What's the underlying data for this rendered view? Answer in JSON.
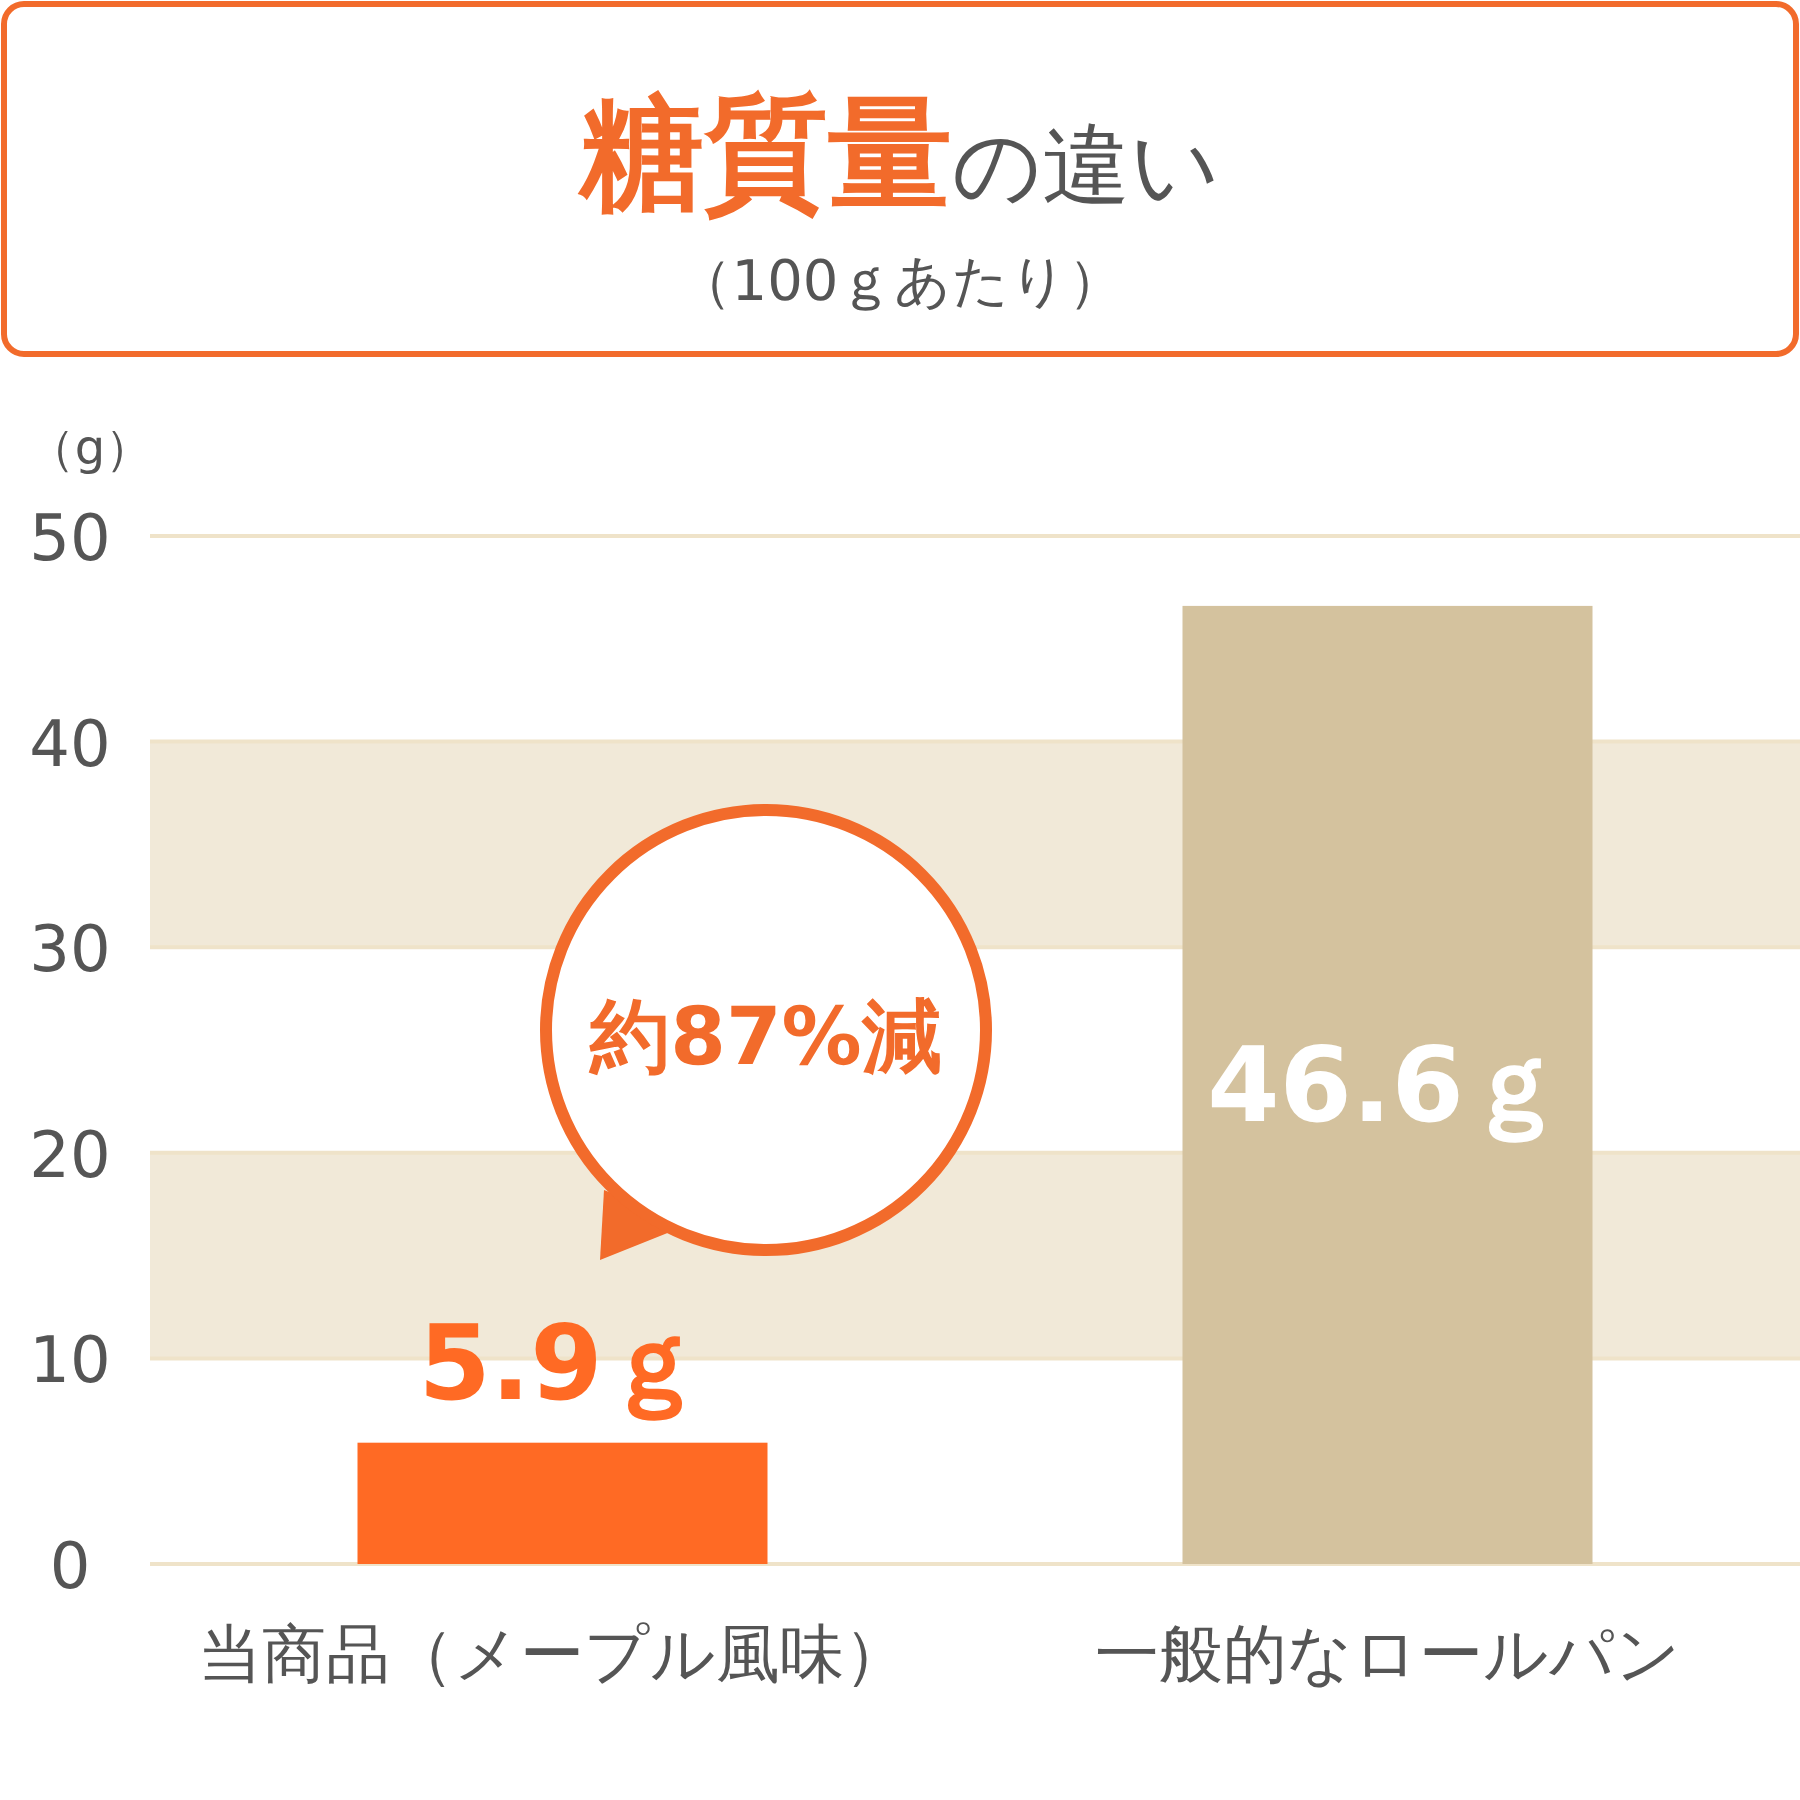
{
  "chart_data": {
    "type": "bar",
    "title": "糖質量の違い",
    "subtitle": "（100ｇあたり）",
    "ylabel": "（g）",
    "categories": [
      "当商品（メープル風味）",
      "一般的なロールパン"
    ],
    "values": [
      5.9,
      46.6
    ],
    "colors": [
      "#ff6a24",
      "#d4c29e"
    ],
    "value_labels": [
      "5.9ｇ",
      "46.6ｇ"
    ],
    "ylim": [
      0,
      50
    ],
    "yticks": [
      0,
      10,
      20,
      30,
      40,
      50
    ],
    "grid": "y",
    "bands": [
      {
        "axis": "y",
        "from": 10,
        "to": 20,
        "color": "#f1e9d8"
      },
      {
        "axis": "y",
        "from": 30,
        "to": 40,
        "color": "#f1e9d8"
      }
    ],
    "annotations": [
      "約87%減"
    ]
  }
}
